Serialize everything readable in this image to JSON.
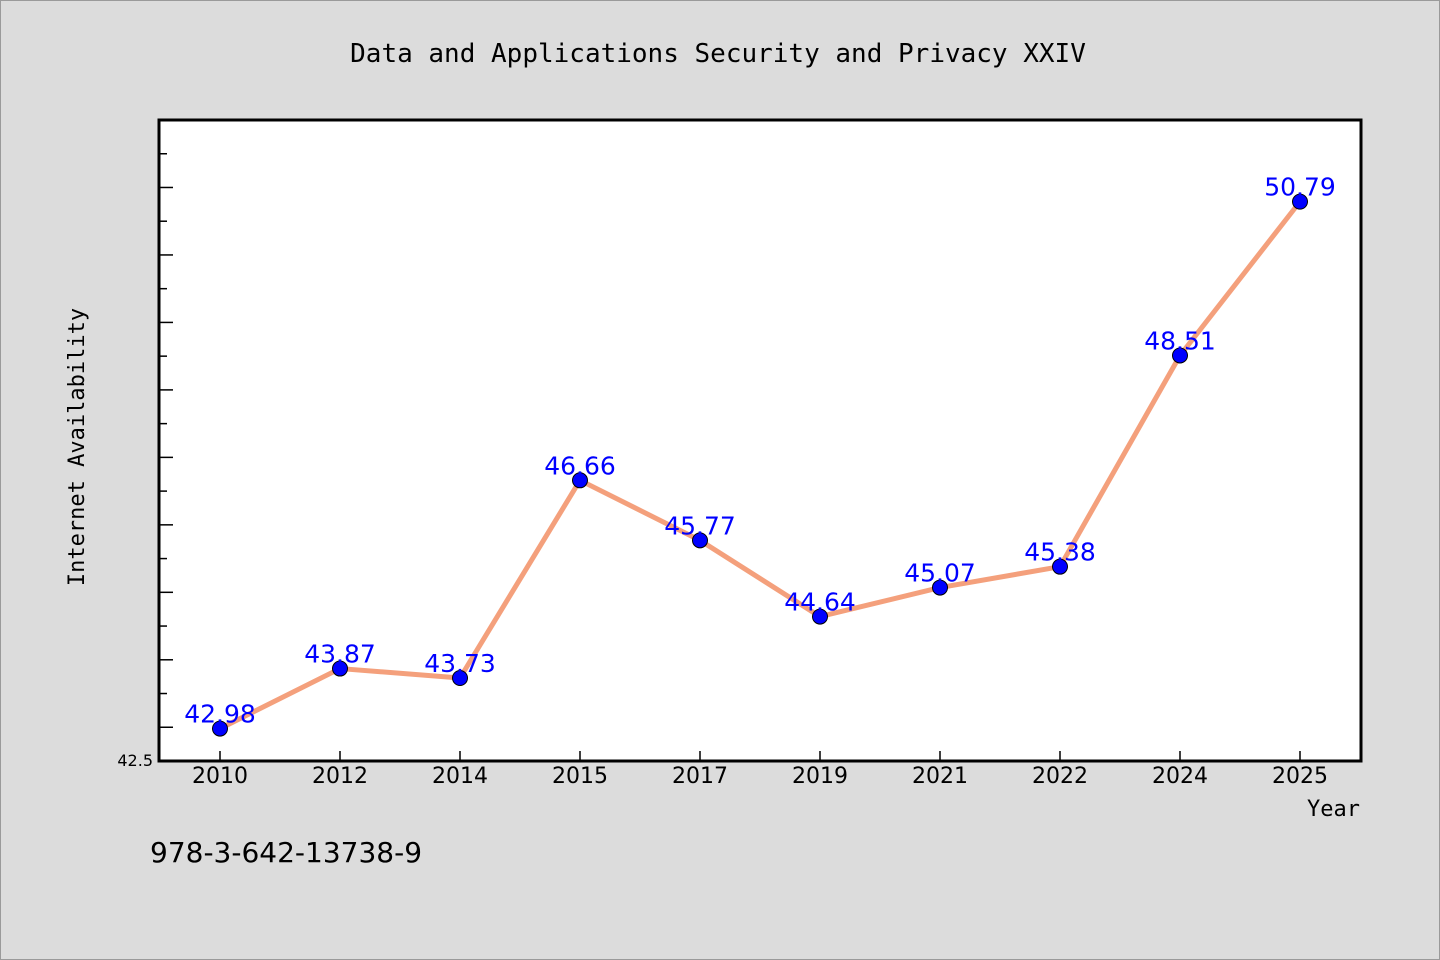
{
  "chart_data": {
    "type": "line",
    "title": "Data and Applications Security and Privacy XXIV",
    "xlabel": "Year",
    "ylabel": "Internet Availability",
    "categories": [
      "2010",
      "2012",
      "2014",
      "2015",
      "2017",
      "2019",
      "2021",
      "2022",
      "2024",
      "2025"
    ],
    "values": [
      42.98,
      43.87,
      43.73,
      46.66,
      45.77,
      44.64,
      45.07,
      45.38,
      48.51,
      50.79
    ],
    "data_labels": [
      "42.98",
      "43.87",
      "43.73",
      "46.66",
      "45.77",
      "44.64",
      "45.07",
      "45.38",
      "48.51",
      "50.79"
    ],
    "ylim": [
      42.5,
      52.0
    ],
    "y_tick_labels": [
      "42.5"
    ],
    "grid": false,
    "line_color": "#f4a07c",
    "marker_color": "#0000ff",
    "label_color": "#0000ff"
  },
  "footer": {
    "isbn": "978-3-642-13738-9"
  }
}
